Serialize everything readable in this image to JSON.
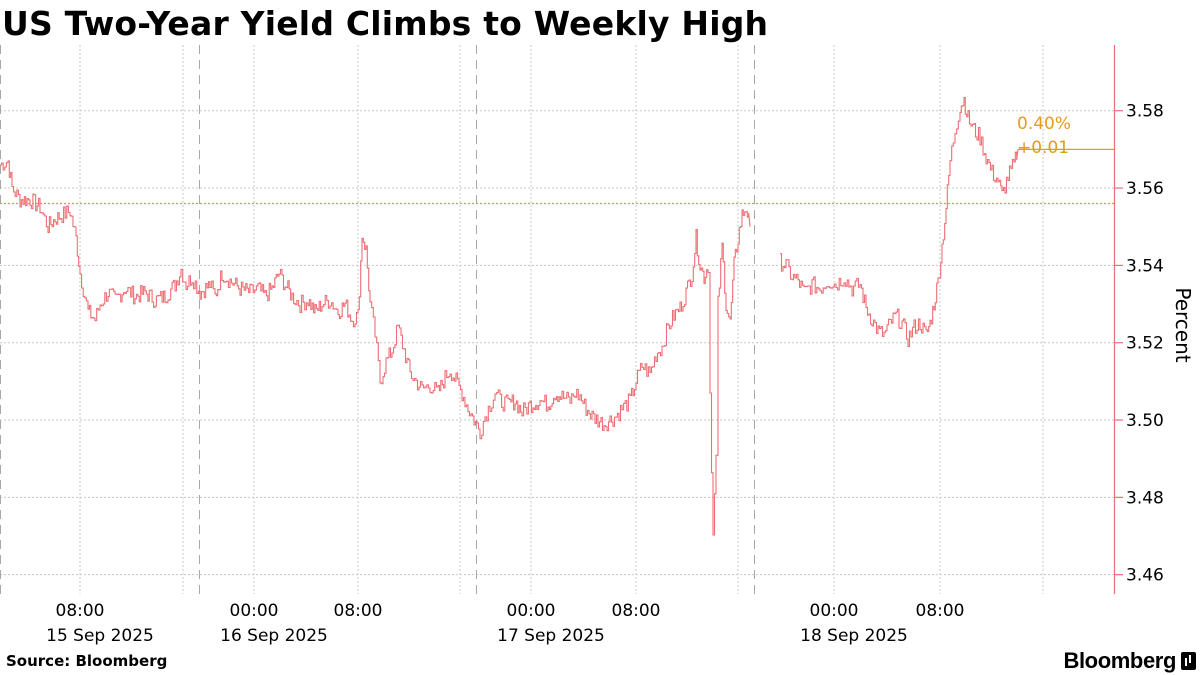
{
  "title": "US Two-Year Yield Climbs to Weekly High",
  "source": "Source: Bloomberg",
  "brand": "Bloomberg",
  "colors": {
    "line": "#ee6e73",
    "accent": "#e69a1e",
    "axis": "#ee6e73",
    "grid": "#c8c8c8"
  },
  "chart_data": {
    "type": "line",
    "title": "US Two-Year Yield Climbs to Weekly High",
    "ylabel": "Percent",
    "xlabel": "",
    "ylim": [
      3.455,
      3.597
    ],
    "yticks": [
      3.46,
      3.48,
      3.5,
      3.52,
      3.54,
      3.56,
      3.58
    ],
    "ytick_labels": [
      "3.46",
      "3.48",
      "3.50",
      "3.52",
      "3.54",
      "3.56",
      "3.58"
    ],
    "xlim": [
      0,
      1114
    ],
    "x_ticks": [
      {
        "x": 80,
        "time": "08:00",
        "date": "15 Sep 2025"
      },
      {
        "x": 254,
        "time": "00:00",
        "date": "16 Sep 2025"
      },
      {
        "x": 358,
        "time": "08:00",
        "date": ""
      },
      {
        "x": 531,
        "time": "00:00",
        "date": "17 Sep 2025"
      },
      {
        "x": 636,
        "time": "08:00",
        "date": ""
      },
      {
        "x": 834,
        "time": "00:00",
        "date": "18 Sep 2025"
      },
      {
        "x": 940,
        "time": "08:00",
        "date": ""
      }
    ],
    "dashed_vlines": [
      0,
      199,
      476,
      754
    ],
    "reference_level": 3.556,
    "annotation": {
      "label": "0.40%",
      "change": "+0.01",
      "value": 3.57
    },
    "series": [
      {
        "name": "",
        "segments": [
          [
            [
              0,
              3.566
            ],
            [
              8,
              3.567
            ],
            [
              12,
              3.56
            ],
            [
              20,
              3.557
            ],
            [
              30,
              3.557
            ],
            [
              40,
              3.555
            ],
            [
              48,
              3.55
            ],
            [
              55,
              3.552
            ],
            [
              62,
              3.553
            ],
            [
              70,
              3.554
            ],
            [
              76,
              3.547
            ],
            [
              80,
              3.538
            ],
            [
              88,
              3.528
            ],
            [
              95,
              3.526
            ],
            [
              100,
              3.53
            ],
            [
              108,
              3.533
            ],
            [
              115,
              3.531
            ],
            [
              125,
              3.534
            ],
            [
              135,
              3.532
            ],
            [
              145,
              3.533
            ],
            [
              155,
              3.531
            ],
            [
              165,
              3.532
            ],
            [
              175,
              3.535
            ],
            [
              181,
              3.539
            ],
            [
              186,
              3.535
            ],
            [
              192,
              3.537
            ],
            [
              200,
              3.533
            ],
            [
              210,
              3.535
            ],
            [
              215,
              3.532
            ],
            [
              222,
              3.538
            ],
            [
              230,
              3.536
            ],
            [
              240,
              3.534
            ],
            [
              250,
              3.533
            ],
            [
              258,
              3.534
            ],
            [
              265,
              3.532
            ],
            [
              272,
              3.534
            ],
            [
              279,
              3.538
            ],
            [
              285,
              3.535
            ],
            [
              292,
              3.532
            ],
            [
              300,
              3.53
            ],
            [
              308,
              3.531
            ],
            [
              315,
              3.528
            ],
            [
              322,
              3.53
            ],
            [
              330,
              3.531
            ],
            [
              338,
              3.528
            ],
            [
              345,
              3.53
            ],
            [
              352,
              3.526
            ],
            [
              358,
              3.527
            ],
            [
              362,
              3.548
            ],
            [
              366,
              3.544
            ],
            [
              370,
              3.53
            ],
            [
              375,
              3.522
            ],
            [
              380,
              3.51
            ],
            [
              386,
              3.515
            ],
            [
              392,
              3.518
            ],
            [
              398,
              3.524
            ],
            [
              404,
              3.518
            ],
            [
              410,
              3.512
            ],
            [
              416,
              3.51
            ],
            [
              422,
              3.508
            ],
            [
              430,
              3.509
            ],
            [
              438,
              3.507
            ],
            [
              445,
              3.511
            ],
            [
              450,
              3.513
            ],
            [
              456,
              3.51
            ],
            [
              462,
              3.507
            ],
            [
              468,
              3.503
            ],
            [
              474,
              3.5
            ],
            [
              480,
              3.497
            ],
            [
              485,
              3.501
            ],
            [
              490,
              3.504
            ],
            [
              495,
              3.507
            ],
            [
              500,
              3.505
            ],
            [
              508,
              3.504
            ],
            [
              515,
              3.505
            ],
            [
              522,
              3.502
            ],
            [
              530,
              3.504
            ],
            [
              540,
              3.505
            ],
            [
              548,
              3.504
            ],
            [
              555,
              3.507
            ],
            [
              562,
              3.506
            ],
            [
              570,
              3.505
            ],
            [
              575,
              3.507
            ],
            [
              580,
              3.506
            ],
            [
              586,
              3.503
            ],
            [
              592,
              3.501
            ],
            [
              598,
              3.5
            ],
            [
              604,
              3.499
            ],
            [
              610,
              3.5
            ],
            [
              616,
              3.501
            ],
            [
              622,
              3.503
            ],
            [
              630,
              3.505
            ],
            [
              636,
              3.51
            ],
            [
              642,
              3.514
            ],
            [
              650,
              3.512
            ],
            [
              656,
              3.517
            ],
            [
              662,
              3.519
            ],
            [
              668,
              3.524
            ],
            [
              674,
              3.527
            ],
            [
              680,
              3.529
            ],
            [
              686,
              3.533
            ],
            [
              692,
              3.538
            ],
            [
              696,
              3.547
            ],
            [
              700,
              3.54
            ],
            [
              704,
              3.537
            ],
            [
              708,
              3.54
            ],
            [
              710,
              3.507
            ],
            [
              713,
              3.47
            ],
            [
              716,
              3.49
            ],
            [
              718,
              3.53
            ],
            [
              722,
              3.545
            ],
            [
              726,
              3.53
            ],
            [
              730,
              3.525
            ],
            [
              734,
              3.54
            ],
            [
              738,
              3.547
            ],
            [
              742,
              3.553
            ],
            [
              746,
              3.555
            ],
            [
              750,
              3.55
            ]
          ],
          [
            [
              780,
              3.541
            ],
            [
              786,
              3.54
            ],
            [
              792,
              3.537
            ],
            [
              798,
              3.536
            ],
            [
              804,
              3.533
            ],
            [
              812,
              3.535
            ],
            [
              820,
              3.534
            ],
            [
              828,
              3.536
            ],
            [
              836,
              3.535
            ],
            [
              844,
              3.537
            ],
            [
              852,
              3.534
            ],
            [
              860,
              3.535
            ],
            [
              866,
              3.529
            ],
            [
              872,
              3.526
            ],
            [
              878,
              3.523
            ],
            [
              884,
              3.522
            ],
            [
              890,
              3.525
            ],
            [
              896,
              3.527
            ],
            [
              902,
              3.525
            ],
            [
              908,
              3.521
            ],
            [
              914,
              3.524
            ],
            [
              920,
              3.525
            ],
            [
              926,
              3.522
            ],
            [
              930,
              3.525
            ],
            [
              934,
              3.53
            ],
            [
              938,
              3.536
            ],
            [
              942,
              3.545
            ],
            [
              946,
              3.555
            ],
            [
              950,
              3.567
            ],
            [
              955,
              3.575
            ],
            [
              960,
              3.581
            ],
            [
              964,
              3.583
            ],
            [
              968,
              3.578
            ],
            [
              974,
              3.575
            ],
            [
              980,
              3.573
            ],
            [
              986,
              3.568
            ],
            [
              992,
              3.564
            ],
            [
              998,
              3.562
            ],
            [
              1002,
              3.558
            ],
            [
              1008,
              3.563
            ],
            [
              1014,
              3.566
            ],
            [
              1018,
              3.57
            ]
          ]
        ]
      }
    ]
  }
}
